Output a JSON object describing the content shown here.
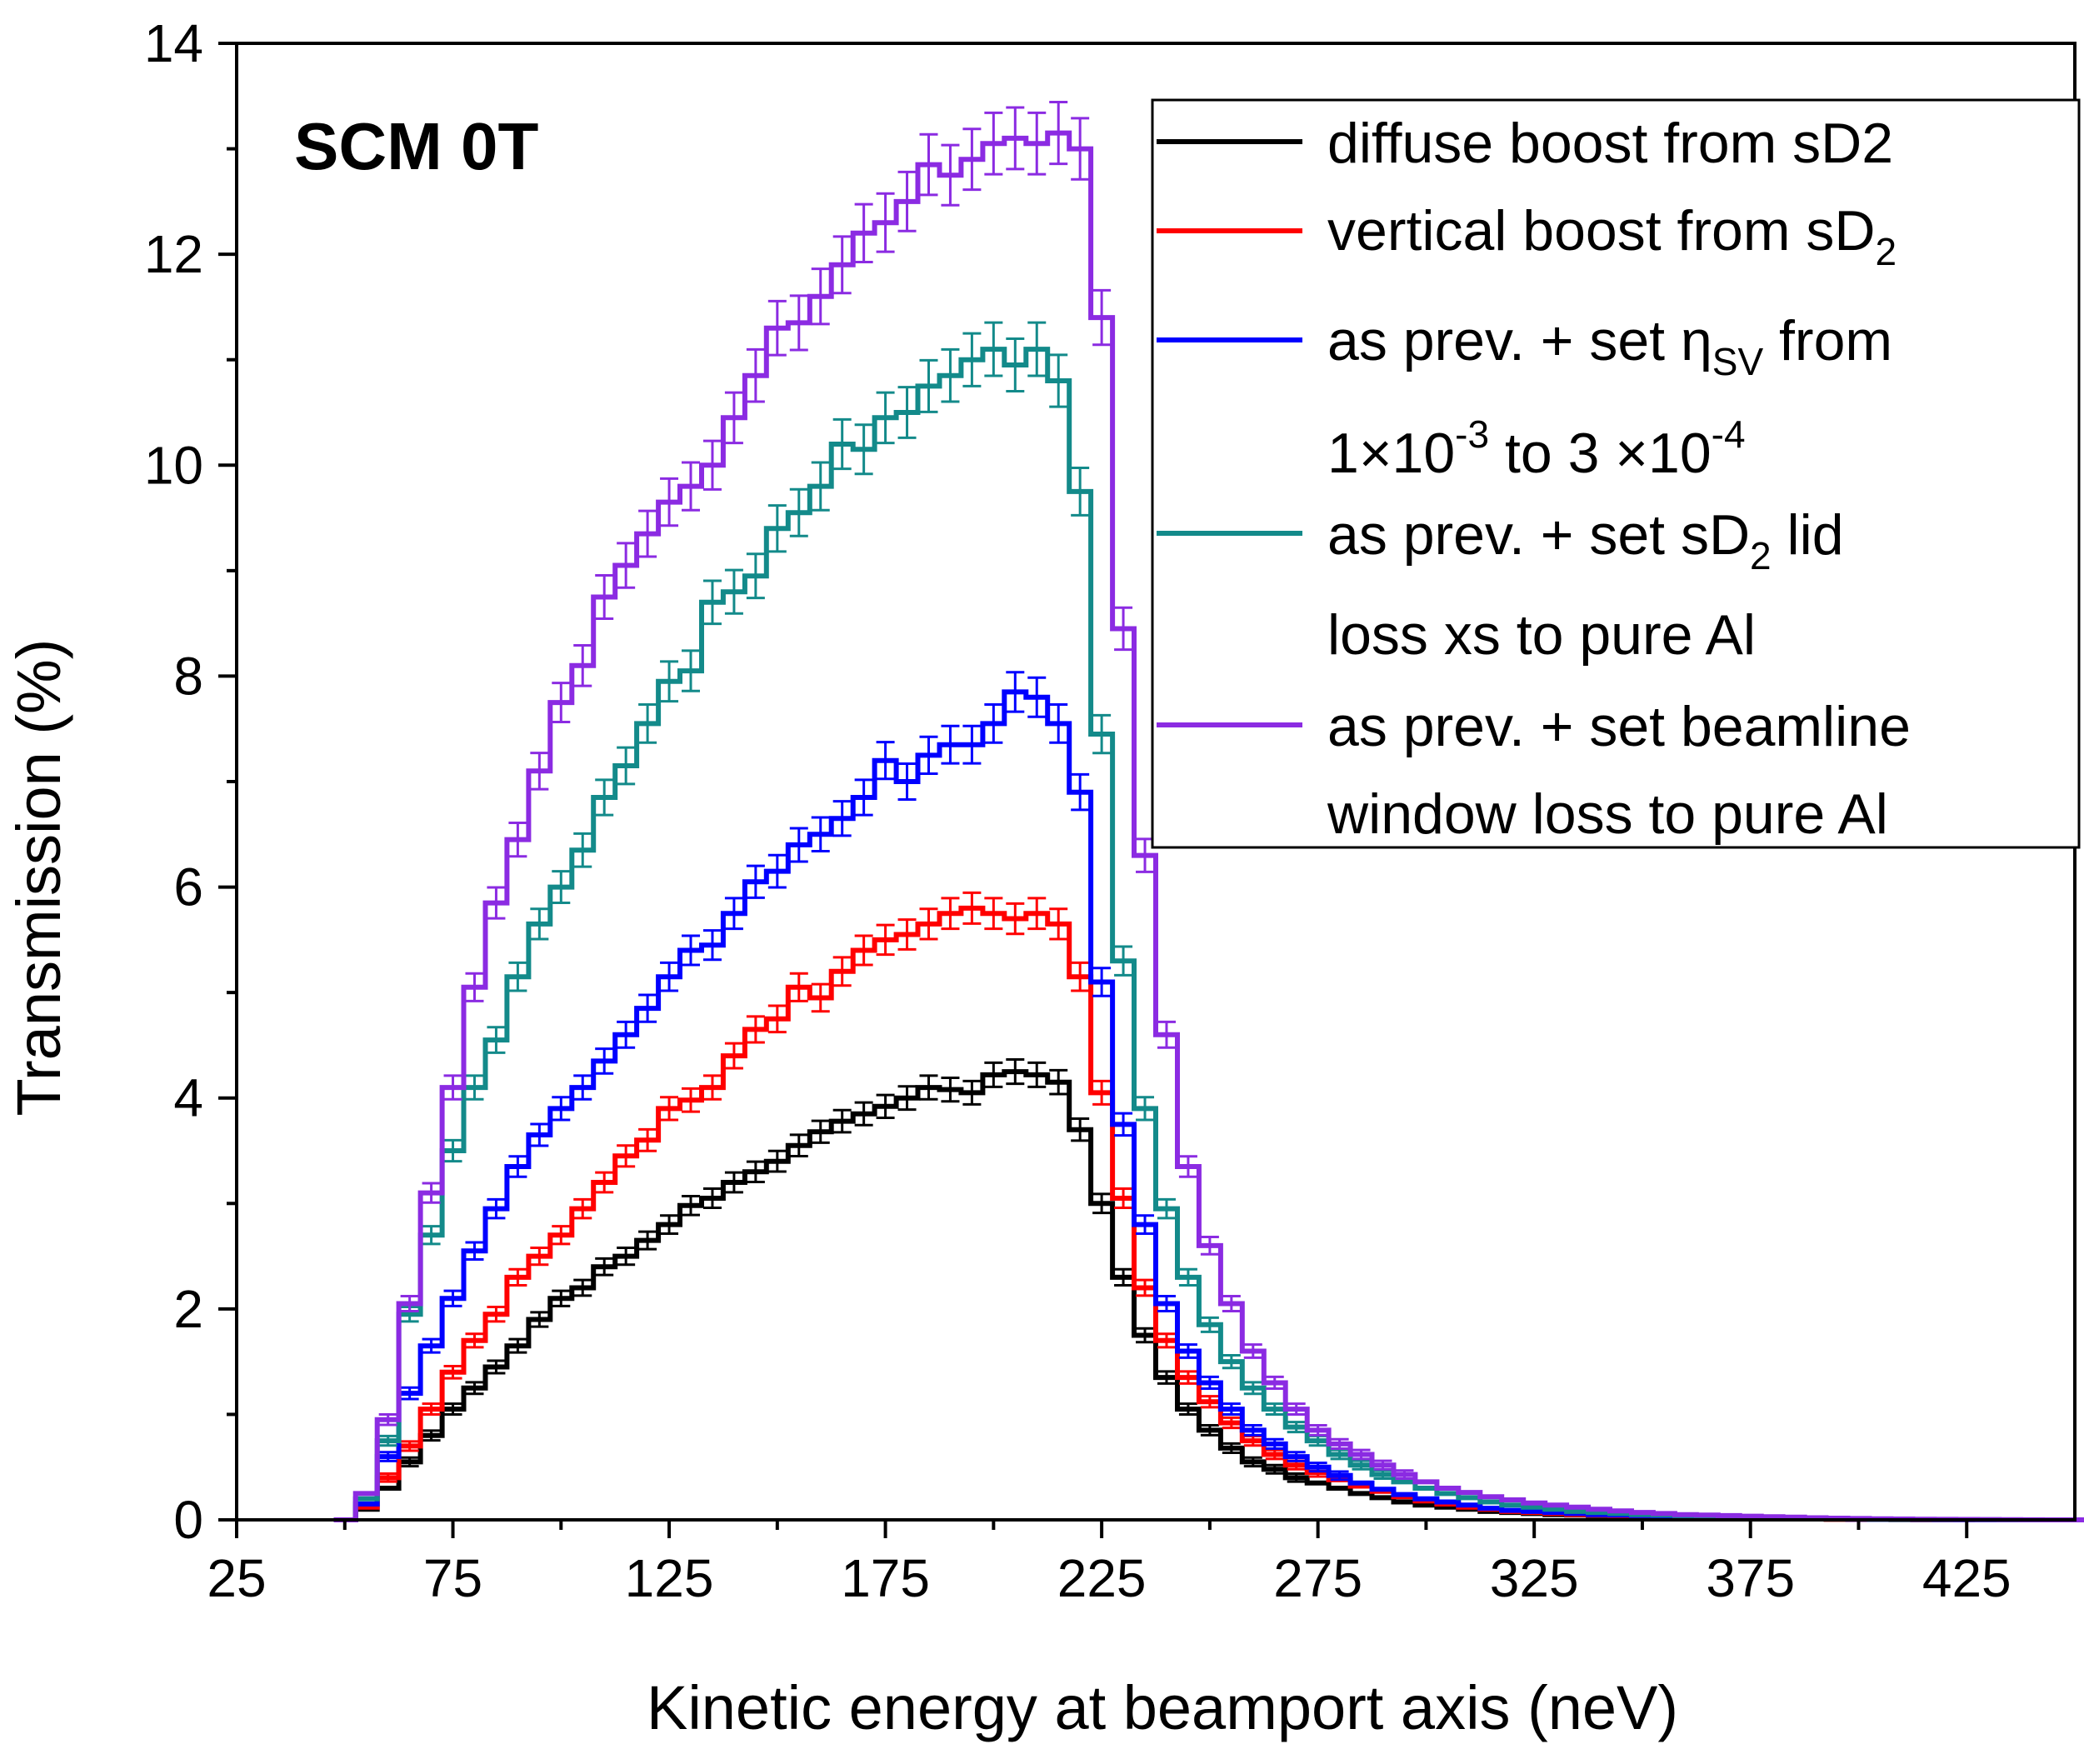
{
  "chart_data": {
    "type": "line",
    "style": "step histogram with error bars",
    "panel_label": "SCM 0T",
    "xlabel": "Kinetic energy at beamport axis (neV)",
    "ylabel": "Transmission (%)",
    "xlim": [
      25,
      450
    ],
    "ylim": [
      0,
      14
    ],
    "xticks": [
      25,
      75,
      125,
      175,
      225,
      275,
      325,
      375,
      425
    ],
    "yticks": [
      0,
      2,
      4,
      6,
      8,
      10,
      12,
      14
    ],
    "legend_position": "top-right",
    "bin_start": 47.5,
    "bin_width": 5,
    "series": [
      {
        "name": "diffuse boost from sD2",
        "legend_lines": [
          "diffuse boost from sD2"
        ],
        "color": "#000000",
        "values": [
          0.0,
          0.1,
          0.3,
          0.55,
          0.8,
          1.05,
          1.25,
          1.45,
          1.65,
          1.9,
          2.1,
          2.2,
          2.4,
          2.5,
          2.65,
          2.8,
          2.98,
          3.05,
          3.2,
          3.3,
          3.4,
          3.55,
          3.68,
          3.78,
          3.85,
          3.92,
          4.0,
          4.1,
          4.08,
          4.05,
          4.22,
          4.25,
          4.22,
          4.15,
          3.7,
          3.0,
          2.3,
          1.75,
          1.35,
          1.05,
          0.85,
          0.68,
          0.55,
          0.48,
          0.4,
          0.35,
          0.3,
          0.25,
          0.21,
          0.17,
          0.14,
          0.12,
          0.1,
          0.08,
          0.07,
          0.06,
          0.05,
          0.045,
          0.04,
          0.035,
          0.03,
          0.025,
          0.02,
          0.02,
          0.015,
          0.012,
          0.01,
          0.01,
          0.008,
          0.006,
          0.005,
          0.004,
          0.003,
          0.002,
          0.002,
          0.001,
          0.0,
          0.0,
          0.0,
          0.0,
          0.0
        ]
      },
      {
        "name": "vertical boost from sD2",
        "legend_lines": [
          "vertical boost from sD",
          "2"
        ],
        "color": "#ff0000",
        "values": [
          0.0,
          0.12,
          0.4,
          0.7,
          1.05,
          1.4,
          1.7,
          1.95,
          2.3,
          2.5,
          2.7,
          2.95,
          3.2,
          3.45,
          3.6,
          3.9,
          3.98,
          4.1,
          4.4,
          4.65,
          4.75,
          5.05,
          4.95,
          5.2,
          5.4,
          5.5,
          5.55,
          5.65,
          5.75,
          5.8,
          5.75,
          5.7,
          5.75,
          5.65,
          5.15,
          4.05,
          3.05,
          2.2,
          1.7,
          1.35,
          1.12,
          0.92,
          0.75,
          0.62,
          0.52,
          0.45,
          0.38,
          0.32,
          0.27,
          0.22,
          0.18,
          0.15,
          0.12,
          0.1,
          0.08,
          0.07,
          0.06,
          0.05,
          0.045,
          0.04,
          0.035,
          0.03,
          0.025,
          0.02,
          0.018,
          0.015,
          0.012,
          0.01,
          0.008,
          0.006,
          0.005,
          0.004,
          0.003,
          0.002,
          0.002,
          0.001,
          0.0,
          0.0,
          0.0,
          0.0,
          0.0
        ]
      },
      {
        "name": "as prev. + set ηSV from 1×10-3 to 3 ×10-4",
        "legend_lines": [
          "as prev. + set η",
          "SV",
          " from",
          "1×10",
          "-3",
          " to 3 ×10",
          "-4"
        ],
        "color": "#0000ff",
        "values": [
          0.0,
          0.15,
          0.6,
          1.2,
          1.65,
          2.1,
          2.55,
          2.95,
          3.35,
          3.65,
          3.9,
          4.1,
          4.35,
          4.6,
          4.85,
          5.15,
          5.4,
          5.45,
          5.75,
          6.05,
          6.15,
          6.4,
          6.5,
          6.65,
          6.85,
          7.2,
          7.0,
          7.25,
          7.35,
          7.35,
          7.55,
          7.85,
          7.8,
          7.55,
          6.9,
          5.1,
          3.75,
          2.8,
          2.05,
          1.6,
          1.3,
          1.05,
          0.85,
          0.72,
          0.6,
          0.5,
          0.42,
          0.35,
          0.29,
          0.24,
          0.2,
          0.17,
          0.14,
          0.11,
          0.09,
          0.08,
          0.07,
          0.06,
          0.05,
          0.045,
          0.04,
          0.035,
          0.03,
          0.025,
          0.02,
          0.018,
          0.015,
          0.012,
          0.01,
          0.008,
          0.006,
          0.005,
          0.004,
          0.003,
          0.002,
          0.001,
          0.0,
          0.0,
          0.0,
          0.0,
          0.0
        ]
      },
      {
        "name": "as prev. + set sD2 lid loss xs to pure Al",
        "legend_lines": [
          "as prev. + set sD",
          "2",
          " lid",
          "loss xs to pure Al"
        ],
        "color": "#138a8a",
        "values": [
          0.0,
          0.2,
          0.75,
          1.95,
          2.7,
          3.5,
          4.1,
          4.55,
          5.15,
          5.65,
          6.0,
          6.35,
          6.85,
          7.15,
          7.55,
          7.95,
          8.05,
          8.7,
          8.8,
          8.95,
          9.4,
          9.55,
          9.8,
          10.2,
          10.15,
          10.45,
          10.5,
          10.75,
          10.85,
          11.0,
          11.1,
          10.95,
          11.1,
          10.8,
          9.75,
          7.45,
          5.3,
          3.9,
          2.95,
          2.3,
          1.85,
          1.5,
          1.25,
          1.05,
          0.88,
          0.75,
          0.62,
          0.52,
          0.43,
          0.36,
          0.3,
          0.25,
          0.21,
          0.17,
          0.14,
          0.12,
          0.1,
          0.08,
          0.07,
          0.06,
          0.05,
          0.045,
          0.04,
          0.035,
          0.03,
          0.025,
          0.02,
          0.016,
          0.013,
          0.01,
          0.008,
          0.006,
          0.005,
          0.004,
          0.003,
          0.002,
          0.001,
          0.0,
          0.0,
          0.0,
          0.0
        ]
      },
      {
        "name": "as prev. + set beamline window loss to pure Al",
        "legend_lines": [
          "as prev. + set beamline",
          "window loss to pure Al"
        ],
        "color": "#8b2be2",
        "values": [
          0.0,
          0.25,
          0.95,
          2.05,
          3.1,
          4.1,
          5.05,
          5.85,
          6.45,
          7.1,
          7.75,
          8.1,
          8.75,
          9.05,
          9.35,
          9.65,
          9.8,
          10.0,
          10.45,
          10.85,
          11.3,
          11.35,
          11.6,
          11.9,
          12.2,
          12.3,
          12.5,
          12.85,
          12.75,
          12.9,
          13.05,
          13.1,
          13.05,
          13.15,
          13.0,
          11.4,
          8.45,
          6.3,
          4.6,
          3.35,
          2.6,
          2.05,
          1.6,
          1.3,
          1.05,
          0.85,
          0.72,
          0.62,
          0.52,
          0.43,
          0.36,
          0.3,
          0.26,
          0.22,
          0.19,
          0.16,
          0.14,
          0.12,
          0.1,
          0.085,
          0.07,
          0.06,
          0.05,
          0.045,
          0.04,
          0.035,
          0.03,
          0.025,
          0.02,
          0.016,
          0.013,
          0.01,
          0.008,
          0.006,
          0.005,
          0.004,
          0.003,
          0.002,
          0.001,
          0.0,
          0.0
        ]
      }
    ]
  }
}
